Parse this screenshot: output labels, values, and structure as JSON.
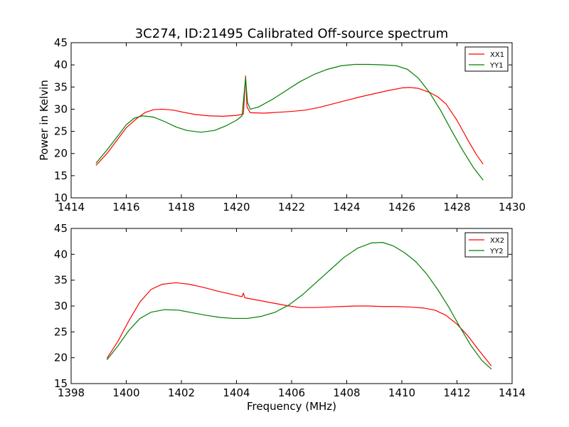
{
  "chart_data": [
    {
      "type": "line",
      "title": "3C274, ID:21495 Calibrated Off-source spectrum",
      "xlabel": "",
      "ylabel": "Power in Kelvin",
      "xlim": [
        1414,
        1430
      ],
      "ylim": [
        10,
        45
      ],
      "xticks": [
        1414,
        1416,
        1418,
        1420,
        1422,
        1424,
        1426,
        1428,
        1430
      ],
      "yticks": [
        10,
        15,
        20,
        25,
        30,
        35,
        40,
        45
      ],
      "legend_position": "top-right",
      "series": [
        {
          "name": "XX1",
          "color": "#ff0000",
          "points": [
            [
              1414.9,
              17.3
            ],
            [
              1415.3,
              20.0
            ],
            [
              1415.7,
              23.3
            ],
            [
              1416.0,
              25.8
            ],
            [
              1416.4,
              28.0
            ],
            [
              1416.7,
              29.3
            ],
            [
              1417.0,
              29.9
            ],
            [
              1417.3,
              30.0
            ],
            [
              1417.7,
              29.8
            ],
            [
              1418.0,
              29.4
            ],
            [
              1418.5,
              28.8
            ],
            [
              1419.0,
              28.5
            ],
            [
              1419.5,
              28.4
            ],
            [
              1420.0,
              28.6
            ],
            [
              1420.25,
              28.9
            ],
            [
              1420.33,
              37.5
            ],
            [
              1420.38,
              30.5
            ],
            [
              1420.5,
              29.2
            ],
            [
              1421.0,
              29.1
            ],
            [
              1421.5,
              29.3
            ],
            [
              1422.0,
              29.5
            ],
            [
              1422.5,
              29.8
            ],
            [
              1423.0,
              30.4
            ],
            [
              1423.5,
              31.2
            ],
            [
              1424.0,
              32.0
            ],
            [
              1424.5,
              32.8
            ],
            [
              1425.0,
              33.5
            ],
            [
              1425.5,
              34.2
            ],
            [
              1426.0,
              34.8
            ],
            [
              1426.3,
              34.9
            ],
            [
              1426.6,
              34.7
            ],
            [
              1427.0,
              33.8
            ],
            [
              1427.3,
              32.8
            ],
            [
              1427.6,
              31.2
            ],
            [
              1428.0,
              27.5
            ],
            [
              1428.4,
              23.0
            ],
            [
              1428.7,
              19.8
            ],
            [
              1428.95,
              17.6
            ]
          ]
        },
        {
          "name": "YY1",
          "color": "#008000",
          "points": [
            [
              1414.9,
              17.8
            ],
            [
              1415.3,
              20.8
            ],
            [
              1415.7,
              24.0
            ],
            [
              1416.0,
              26.5
            ],
            [
              1416.3,
              28.0
            ],
            [
              1416.6,
              28.5
            ],
            [
              1417.0,
              28.2
            ],
            [
              1417.4,
              27.2
            ],
            [
              1417.8,
              26.0
            ],
            [
              1418.2,
              25.2
            ],
            [
              1418.7,
              24.8
            ],
            [
              1419.2,
              25.2
            ],
            [
              1419.6,
              26.2
            ],
            [
              1420.0,
              27.5
            ],
            [
              1420.2,
              28.5
            ],
            [
              1420.33,
              37.0
            ],
            [
              1420.4,
              31.5
            ],
            [
              1420.5,
              30.0
            ],
            [
              1420.8,
              30.5
            ],
            [
              1421.3,
              32.2
            ],
            [
              1421.8,
              34.2
            ],
            [
              1422.3,
              36.2
            ],
            [
              1422.8,
              37.8
            ],
            [
              1423.3,
              39.0
            ],
            [
              1423.8,
              39.8
            ],
            [
              1424.3,
              40.1
            ],
            [
              1424.8,
              40.1
            ],
            [
              1425.3,
              40.0
            ],
            [
              1425.8,
              39.8
            ],
            [
              1426.2,
              39.0
            ],
            [
              1426.6,
              37.0
            ],
            [
              1427.0,
              33.8
            ],
            [
              1427.4,
              29.8
            ],
            [
              1427.8,
              25.2
            ],
            [
              1428.2,
              20.8
            ],
            [
              1428.6,
              16.8
            ],
            [
              1428.95,
              14.0
            ]
          ]
        }
      ]
    },
    {
      "type": "line",
      "title": "",
      "xlabel": "Frequency (MHz)",
      "ylabel": "",
      "xlim": [
        1398,
        1414
      ],
      "ylim": [
        15,
        45
      ],
      "xticks": [
        1398,
        1400,
        1402,
        1404,
        1406,
        1408,
        1410,
        1412,
        1414
      ],
      "yticks": [
        15,
        20,
        25,
        30,
        35,
        40,
        45
      ],
      "legend_position": "top-right",
      "series": [
        {
          "name": "XX2",
          "color": "#ff0000",
          "points": [
            [
              1399.3,
              19.9
            ],
            [
              1399.7,
              23.2
            ],
            [
              1400.1,
              27.2
            ],
            [
              1400.5,
              30.8
            ],
            [
              1400.9,
              33.2
            ],
            [
              1401.3,
              34.2
            ],
            [
              1401.8,
              34.5
            ],
            [
              1402.3,
              34.2
            ],
            [
              1402.8,
              33.6
            ],
            [
              1403.3,
              32.9
            ],
            [
              1403.8,
              32.3
            ],
            [
              1404.2,
              31.8
            ],
            [
              1404.25,
              32.5
            ],
            [
              1404.3,
              31.6
            ],
            [
              1404.8,
              31.1
            ],
            [
              1405.3,
              30.6
            ],
            [
              1405.8,
              30.1
            ],
            [
              1406.3,
              29.7
            ],
            [
              1406.8,
              29.7
            ],
            [
              1407.3,
              29.8
            ],
            [
              1407.8,
              29.9
            ],
            [
              1408.3,
              30.0
            ],
            [
              1408.8,
              30.0
            ],
            [
              1409.3,
              29.9
            ],
            [
              1409.8,
              29.9
            ],
            [
              1410.3,
              29.8
            ],
            [
              1410.8,
              29.6
            ],
            [
              1411.2,
              29.2
            ],
            [
              1411.6,
              28.2
            ],
            [
              1412.0,
              26.5
            ],
            [
              1412.4,
              24.2
            ],
            [
              1412.8,
              21.4
            ],
            [
              1413.25,
              18.4
            ]
          ]
        },
        {
          "name": "YY2",
          "color": "#008000",
          "points": [
            [
              1399.3,
              19.6
            ],
            [
              1399.7,
              22.3
            ],
            [
              1400.1,
              25.3
            ],
            [
              1400.5,
              27.6
            ],
            [
              1400.9,
              28.8
            ],
            [
              1401.4,
              29.3
            ],
            [
              1401.9,
              29.2
            ],
            [
              1402.4,
              28.7
            ],
            [
              1402.9,
              28.2
            ],
            [
              1403.4,
              27.8
            ],
            [
              1403.9,
              27.6
            ],
            [
              1404.4,
              27.6
            ],
            [
              1404.9,
              28.0
            ],
            [
              1405.4,
              28.8
            ],
            [
              1405.9,
              30.2
            ],
            [
              1406.4,
              32.2
            ],
            [
              1406.9,
              34.6
            ],
            [
              1407.4,
              37.0
            ],
            [
              1407.9,
              39.4
            ],
            [
              1408.4,
              41.2
            ],
            [
              1408.9,
              42.2
            ],
            [
              1409.3,
              42.3
            ],
            [
              1409.7,
              41.6
            ],
            [
              1410.1,
              40.3
            ],
            [
              1410.5,
              38.6
            ],
            [
              1410.9,
              36.2
            ],
            [
              1411.3,
              33.2
            ],
            [
              1411.7,
              29.8
            ],
            [
              1412.1,
              26.0
            ],
            [
              1412.5,
              22.4
            ],
            [
              1412.9,
              19.5
            ],
            [
              1413.25,
              17.8
            ]
          ]
        }
      ]
    }
  ]
}
